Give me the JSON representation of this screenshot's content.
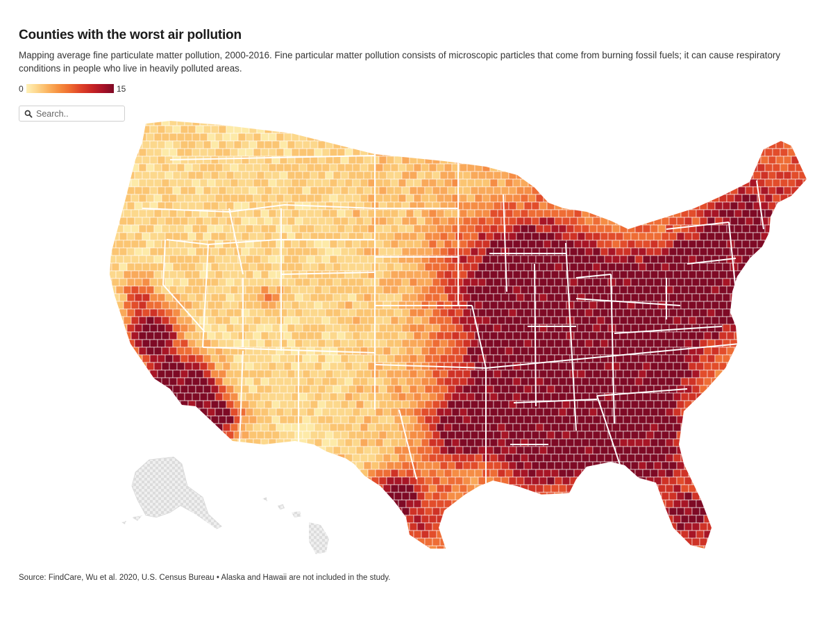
{
  "header": {
    "title": "Counties with the worst air pollution",
    "subtitle": "Mapping average fine particulate matter pollution, 2000-2016. Fine particular matter pollution consists of microscopic particles that come from burning fossil fuels; it can cause respiratory conditions in people who live in heavily polluted areas."
  },
  "legend": {
    "min_label": "0",
    "max_label": "15",
    "colors": [
      "#fff1b8",
      "#fdd58a",
      "#fbb25e",
      "#f68e3e",
      "#ee6a2f",
      "#de4128",
      "#c72524",
      "#a81227",
      "#7e0a25"
    ]
  },
  "search": {
    "placeholder": "Search.."
  },
  "map": {
    "colors": {
      "v1": "#fdeaa8",
      "v2": "#fcd88c",
      "v3": "#fbc572",
      "v4": "#f9a95a",
      "v5": "#f58d45",
      "v6": "#ee6d35",
      "v7": "#e24d2b",
      "v8": "#cf3226",
      "v9": "#a71526",
      "v10": "#7e0a25",
      "excluded": "#e3e3e3",
      "border": "#ffffff"
    }
  },
  "footer": {
    "source": "Source: FindCare, Wu et al. 2020, U.S. Census Bureau • Alaska and Hawaii are not included in the study."
  }
}
